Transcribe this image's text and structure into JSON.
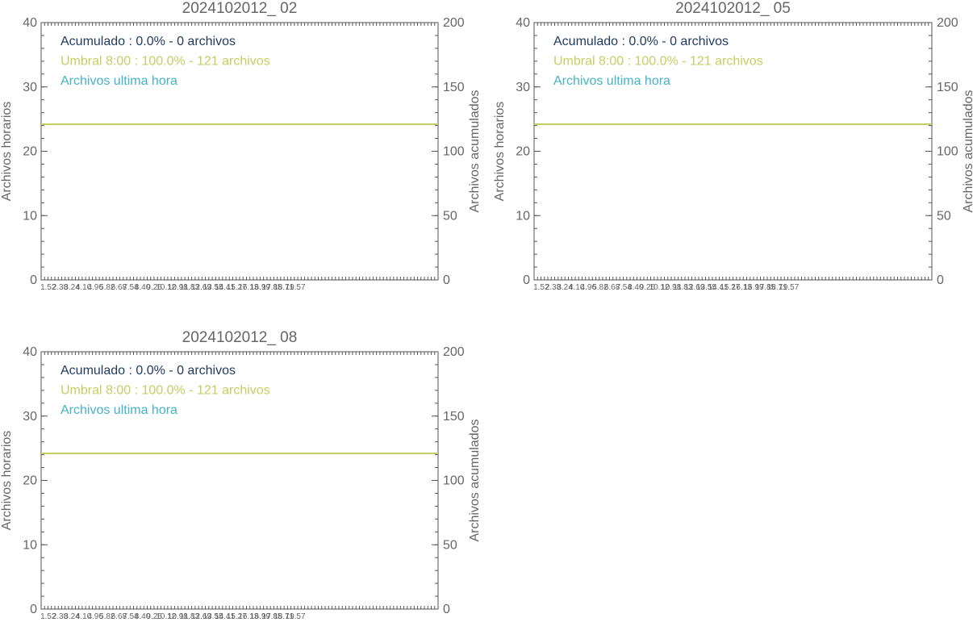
{
  "colors": {
    "axis": "#555555",
    "text": "#666666",
    "accumulated": "#1f3a5f",
    "threshold": "#c3cf62",
    "last_hour": "#45b3c8"
  },
  "chart_data": [
    {
      "type": "line",
      "title": "2024102012_ 02",
      "ylabel_left": "Archivos horarios",
      "ylabel_right": "Archivos acumulados",
      "ylim_left": [
        0,
        40
      ],
      "ylim_right": [
        0,
        200
      ],
      "yticks_left": [
        "0",
        "10",
        "20",
        "30",
        "40"
      ],
      "yticks_right": [
        "0",
        "50",
        "100",
        "150",
        "200"
      ],
      "xticks": [
        "1.52",
        "2.38",
        "3.24",
        "4.10",
        "4.96",
        "5.82",
        "6.68",
        "7.54",
        "8.40",
        "9.26",
        "10.12",
        "10.98",
        "11.84",
        "12.70",
        "13.56",
        "14.42",
        "15.28",
        "16.14",
        "17.00",
        "17.86",
        "18.72",
        "19.57"
      ],
      "xtick_labels": [
        "1.52",
        "2.38",
        "3.24",
        "4.10",
        "4.96",
        "5.82",
        "6.68",
        "7.54",
        "8.40",
        "9.26",
        "10.12",
        "10.98",
        "11.83",
        "12.69",
        "13.55",
        "14.41",
        "15.27",
        "16.13",
        "16.99",
        "17.85",
        "18.71",
        "19.57"
      ],
      "xlim": [
        1.0,
        30.0
      ],
      "grid": false,
      "legend_position": "top-left",
      "legend": [
        {
          "key": "accumulated",
          "label": "Acumulado : 0.0% - 0 archivos"
        },
        {
          "key": "threshold",
          "label": "Umbral 8:00 : 100.0% - 121 archivos"
        },
        {
          "key": "last_hour",
          "label": "Archivos ultima hora"
        }
      ],
      "series": [
        {
          "key": "threshold",
          "axis": "right",
          "x": [
            1.0,
            30.0
          ],
          "y": [
            121,
            121
          ]
        }
      ]
    },
    {
      "type": "line",
      "title": "2024102012_ 05",
      "ylabel_left": "Archivos horarios",
      "ylabel_right": "Archivos acumulados",
      "ylim_left": [
        0,
        40
      ],
      "ylim_right": [
        0,
        200
      ],
      "yticks_left": [
        "0",
        "10",
        "20",
        "30",
        "40"
      ],
      "yticks_right": [
        "0",
        "50",
        "100",
        "150",
        "200"
      ],
      "xticks": [
        "1.52",
        "2.38",
        "3.24",
        "4.10",
        "4.96",
        "5.82",
        "6.68",
        "7.54",
        "8.40",
        "9.26",
        "10.12",
        "10.98",
        "11.84",
        "12.70",
        "13.56",
        "14.42",
        "15.28",
        "16.14",
        "17.00",
        "17.86",
        "18.72",
        "19.57"
      ],
      "xtick_labels": [
        "1.52",
        "2.38",
        "3.24",
        "4.10",
        "4.96",
        "5.82",
        "6.68",
        "7.54",
        "8.40",
        "9.26",
        "10.12",
        "10.98",
        "11.83",
        "12.69",
        "13.55",
        "14.41",
        "15.27",
        "16.13",
        "16.99",
        "17.85",
        "18.71",
        "19.57"
      ],
      "xlim": [
        1.0,
        30.0
      ],
      "grid": false,
      "legend_position": "top-left",
      "legend": [
        {
          "key": "accumulated",
          "label": "Acumulado : 0.0% - 0 archivos"
        },
        {
          "key": "threshold",
          "label": "Umbral 8:00 : 100.0% - 121 archivos"
        },
        {
          "key": "last_hour",
          "label": "Archivos ultima hora"
        }
      ],
      "series": [
        {
          "key": "threshold",
          "axis": "right",
          "x": [
            1.0,
            30.0
          ],
          "y": [
            121,
            121
          ]
        }
      ]
    },
    {
      "type": "line",
      "title": "2024102012_ 08",
      "ylabel_left": "Archivos horarios",
      "ylabel_right": "Archivos acumulados",
      "ylim_left": [
        0,
        40
      ],
      "ylim_right": [
        0,
        200
      ],
      "yticks_left": [
        "0",
        "10",
        "20",
        "30",
        "40"
      ],
      "yticks_right": [
        "0",
        "50",
        "100",
        "150",
        "200"
      ],
      "xticks": [
        "1.52",
        "2.38",
        "3.24",
        "4.10",
        "4.96",
        "5.82",
        "6.68",
        "7.54",
        "8.40",
        "9.26",
        "10.12",
        "10.98",
        "11.84",
        "12.70",
        "13.56",
        "14.42",
        "15.28",
        "16.14",
        "17.00",
        "17.86",
        "18.72",
        "19.57"
      ],
      "xtick_labels": [
        "1.52",
        "2.38",
        "3.24",
        "4.10",
        "4.96",
        "5.82",
        "6.68",
        "7.54",
        "8.40",
        "9.26",
        "10.12",
        "10.98",
        "11.83",
        "12.69",
        "13.55",
        "14.41",
        "15.27",
        "16.13",
        "16.99",
        "17.85",
        "18.71",
        "19.57"
      ],
      "xlim": [
        1.0,
        30.0
      ],
      "grid": false,
      "legend_position": "top-left",
      "legend": [
        {
          "key": "accumulated",
          "label": "Acumulado : 0.0% - 0 archivos"
        },
        {
          "key": "threshold",
          "label": "Umbral 8:00 : 100.0% - 121 archivos"
        },
        {
          "key": "last_hour",
          "label": "Archivos ultima hora"
        }
      ],
      "series": [
        {
          "key": "threshold",
          "axis": "right",
          "x": [
            1.0,
            30.0
          ],
          "y": [
            121,
            121
          ]
        }
      ]
    }
  ]
}
